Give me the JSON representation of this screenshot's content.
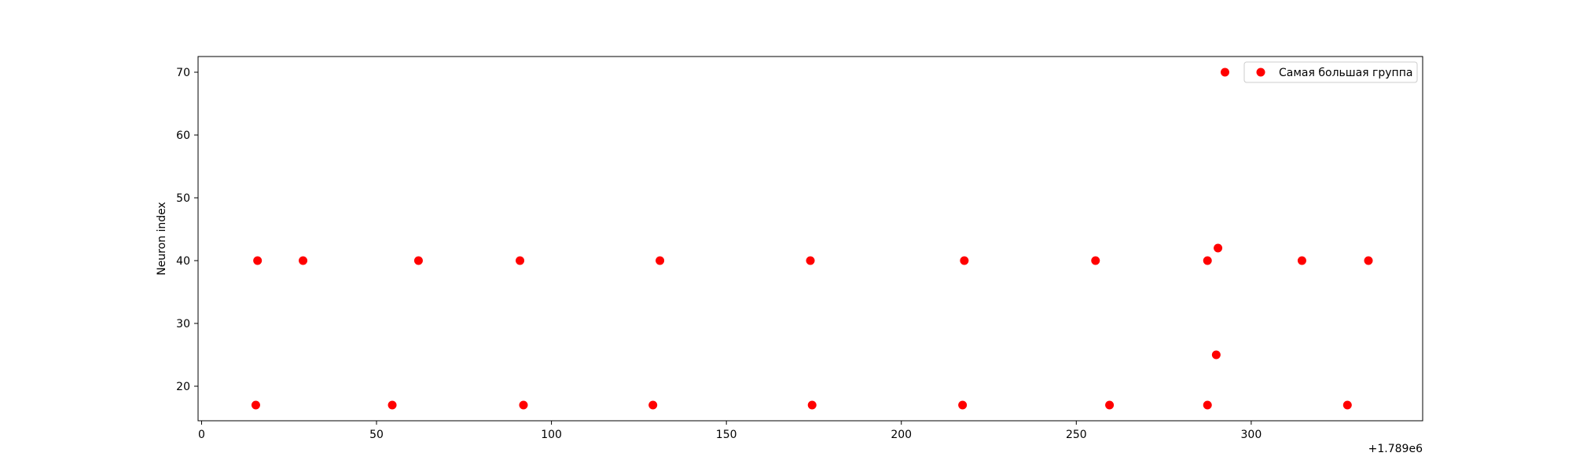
{
  "chart_data": {
    "type": "scatter",
    "title": "",
    "xlabel": "",
    "ylabel": "Neuron index",
    "x_offset_label": "+1.789e6",
    "xlim": [
      -1,
      349
    ],
    "ylim": [
      14.5,
      72.5
    ],
    "x_ticks": [
      0,
      50,
      100,
      150,
      200,
      250,
      300
    ],
    "y_ticks": [
      20,
      30,
      40,
      50,
      60,
      70
    ],
    "grid": false,
    "legend_position": "top-right",
    "color": "#ff0000",
    "series": [
      {
        "name": "Самая большая группа",
        "points": [
          {
            "x": 15.5,
            "y": 17
          },
          {
            "x": 16,
            "y": 40
          },
          {
            "x": 29,
            "y": 40
          },
          {
            "x": 54.5,
            "y": 17
          },
          {
            "x": 62,
            "y": 40
          },
          {
            "x": 91,
            "y": 40
          },
          {
            "x": 92,
            "y": 17
          },
          {
            "x": 129,
            "y": 17
          },
          {
            "x": 131,
            "y": 40
          },
          {
            "x": 174,
            "y": 40
          },
          {
            "x": 174.5,
            "y": 17
          },
          {
            "x": 217.5,
            "y": 17
          },
          {
            "x": 218,
            "y": 40
          },
          {
            "x": 255.5,
            "y": 40
          },
          {
            "x": 259.5,
            "y": 17
          },
          {
            "x": 287.5,
            "y": 40
          },
          {
            "x": 287.5,
            "y": 17
          },
          {
            "x": 290,
            "y": 25
          },
          {
            "x": 290.5,
            "y": 42
          },
          {
            "x": 292.5,
            "y": 70
          },
          {
            "x": 314.5,
            "y": 40
          },
          {
            "x": 327.5,
            "y": 17
          },
          {
            "x": 333.5,
            "y": 40
          }
        ]
      }
    ]
  }
}
